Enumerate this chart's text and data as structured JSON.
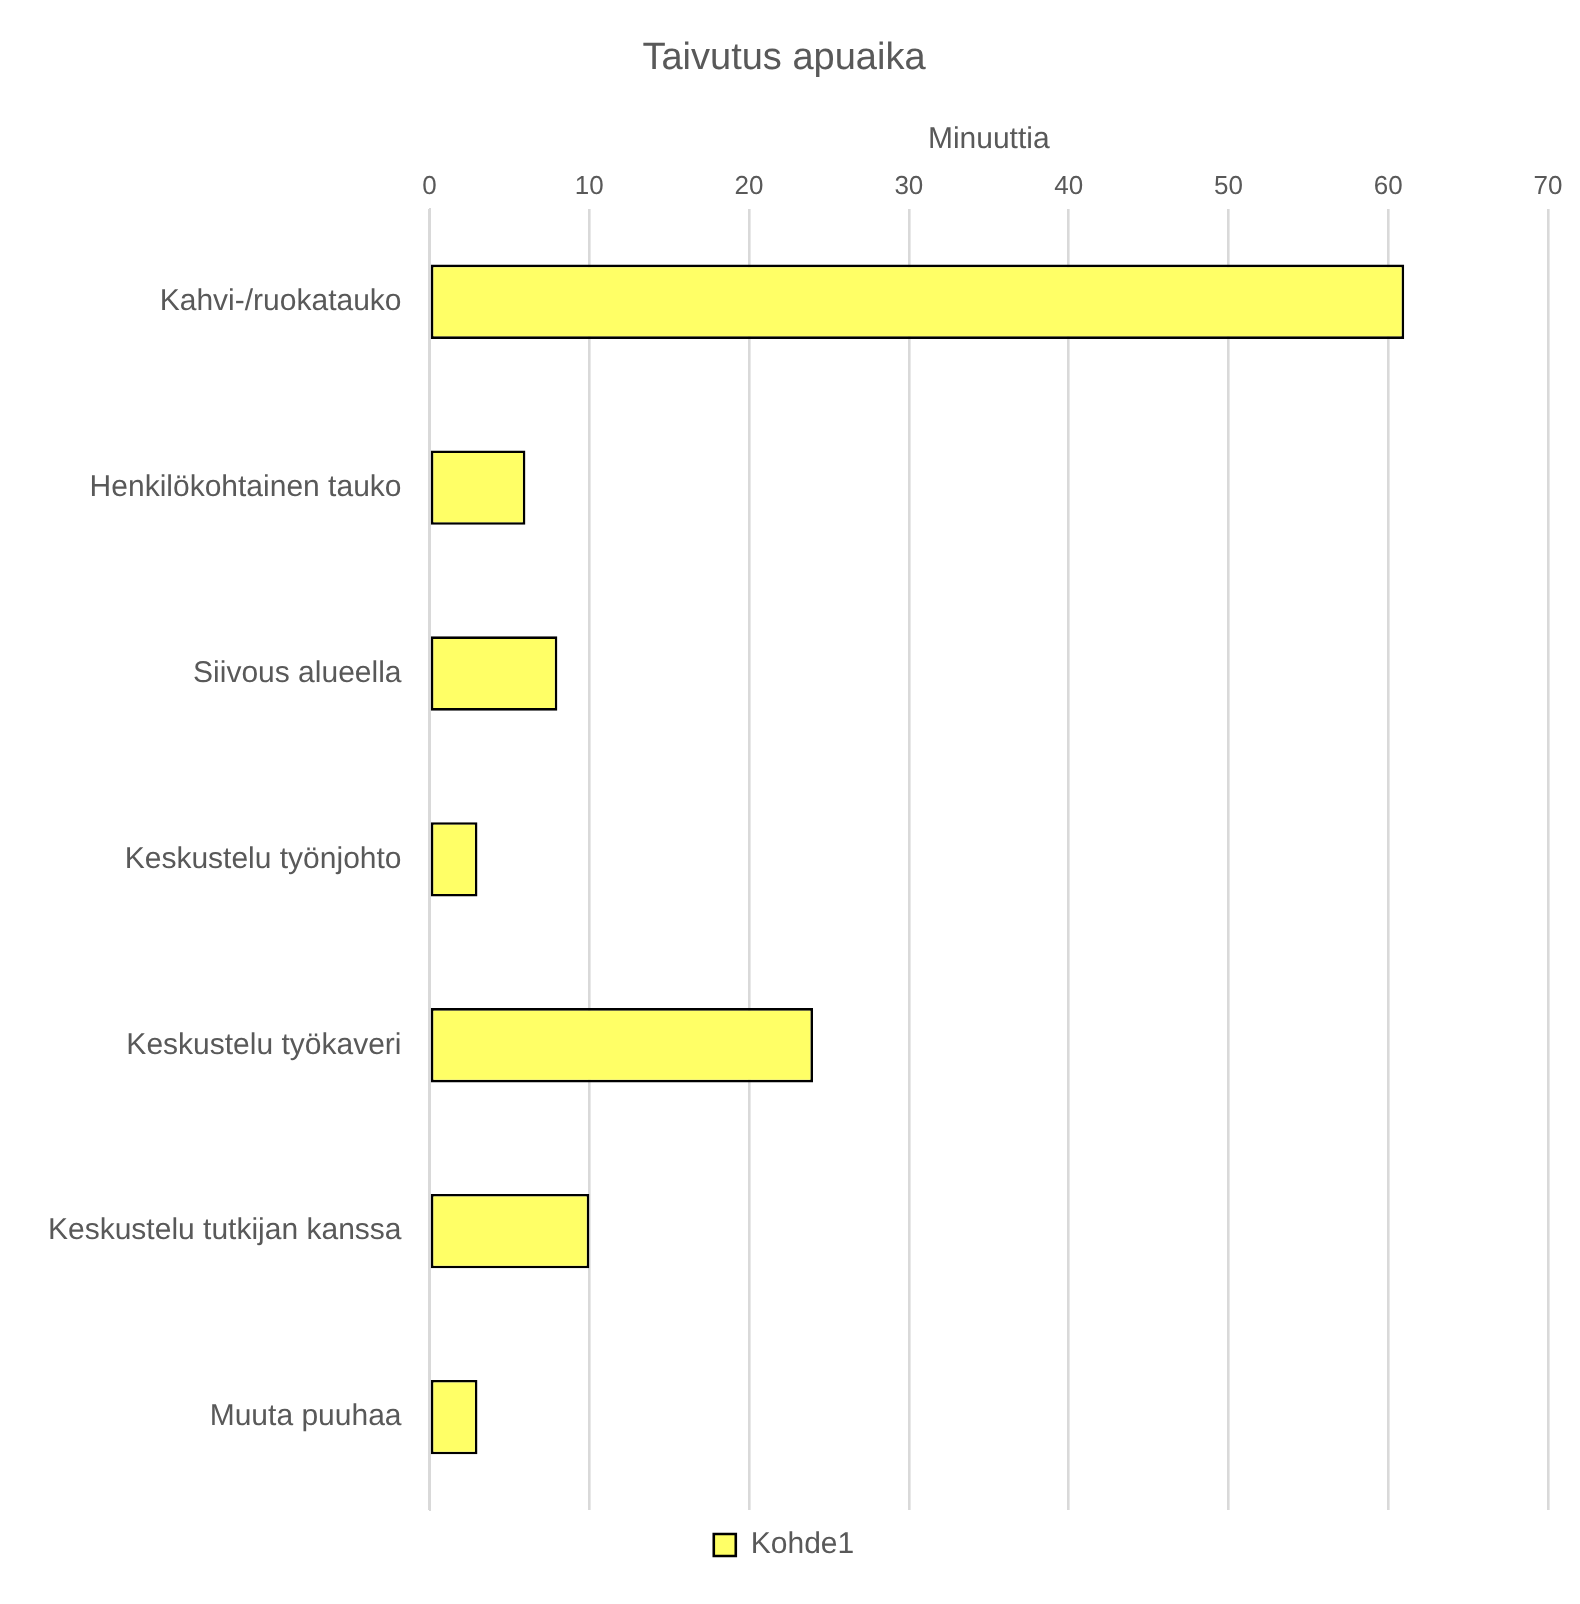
{
  "chart_data": {
    "type": "bar",
    "orientation": "horizontal",
    "title": "Taivutus apuaika",
    "xlabel": "Minuuttia",
    "categories": [
      "Kahvi-/ruokatauko",
      "Henkilökohtainen tauko",
      "Siivous alueella",
      "Keskustelu työnjohto",
      "Keskustelu työkaveri",
      "Keskustelu tutkijan kanssa",
      "Muuta puuhaa"
    ],
    "series": [
      {
        "name": "Kohde1",
        "color": "#ffff66",
        "values": [
          61,
          6,
          8,
          3,
          24,
          10,
          3
        ]
      }
    ],
    "xlim": [
      0,
      70
    ],
    "xticks": [
      0,
      10,
      20,
      30,
      40,
      50,
      60,
      70
    ],
    "grid": "x",
    "legend": "bottom"
  }
}
